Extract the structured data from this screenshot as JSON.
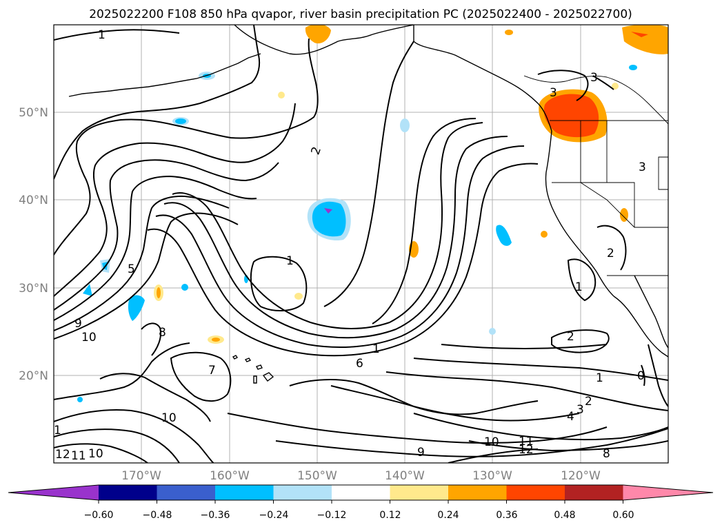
{
  "title": "2025022200 F108 850 hPa qvapor, river basin precipitation PC (2025022400 - 2025022700)",
  "longitude_labels": [
    "170°W",
    "160°W",
    "150°W",
    "140°W",
    "130°W",
    "120°W"
  ],
  "latitude_labels": [
    "50°N",
    "40°N",
    "30°N",
    "20°N"
  ],
  "colorbar": {
    "tick_labels": [
      "−0.60",
      "−0.48",
      "−0.36",
      "−0.24",
      "−0.12",
      "0.12",
      "0.24",
      "0.36",
      "0.48",
      "0.60"
    ],
    "colors": [
      "#9933cc",
      "#00008b",
      "#3a5fcd",
      "#00bfff",
      "#b2e2f8",
      "#ffffff",
      "#ffe98c",
      "#ffa500",
      "#ff4500",
      "#b22222",
      "#ff88aa"
    ]
  },
  "contour_labels": [
    "1",
    "2",
    "3",
    "3",
    "3",
    "5",
    "9",
    "10",
    "8",
    "7",
    "10",
    "10",
    "11",
    "12",
    "1",
    "1",
    "6",
    "1",
    "9",
    "10",
    "11",
    "12",
    "8",
    "2",
    "1",
    "2",
    "3",
    "4",
    "0",
    "2",
    "1"
  ],
  "map_extent": {
    "lon": [
      -180,
      -110
    ],
    "lat": [
      10,
      60
    ]
  }
}
